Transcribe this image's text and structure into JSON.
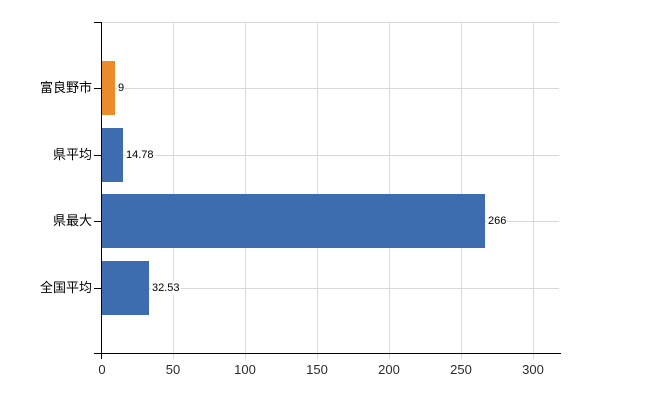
{
  "chart_data": {
    "type": "bar",
    "orientation": "horizontal",
    "title": "",
    "xlabel": "",
    "ylabel": "",
    "categories": [
      "富良野市",
      "県平均",
      "県最大",
      "全国平均"
    ],
    "values": [
      9,
      14.78,
      266,
      32.53
    ],
    "value_labels": [
      "9",
      "14.78",
      "266",
      "32.53"
    ],
    "bar_colors": [
      "#ec8b29",
      "#3e6daf",
      "#3e6daf",
      "#3e6daf"
    ],
    "highlight_color": "#ec8b29",
    "default_bar_color": "#3e6daf",
    "x_ticks": [
      0,
      50,
      100,
      150,
      200,
      250,
      300
    ],
    "x_tick_labels": [
      "0",
      "50",
      "100",
      "150",
      "200",
      "250",
      "300"
    ],
    "xlim": [
      0,
      318
    ],
    "grid": true,
    "gridline_color": "#d9d9d9",
    "axis_color": "#000000",
    "background_color": "#ffffff",
    "legend": null
  }
}
